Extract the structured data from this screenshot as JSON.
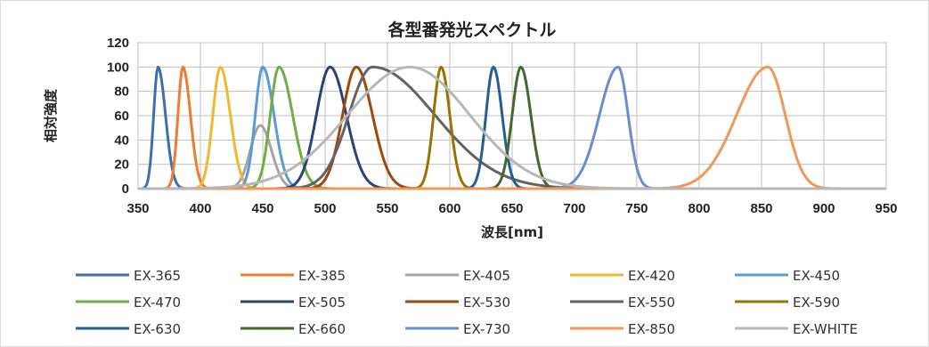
{
  "chart_data": {
    "type": "line",
    "title": "各型番発光スペクトル",
    "xlabel": "波長[nm]",
    "ylabel": "相対強度",
    "xlim": [
      350,
      950
    ],
    "ylim": [
      0,
      120
    ],
    "x_ticks": [
      "350",
      "400",
      "450",
      "500",
      "550",
      "600",
      "650",
      "700",
      "750",
      "800",
      "850",
      "900",
      "950"
    ],
    "y_ticks": [
      "0",
      "20",
      "40",
      "60",
      "80",
      "100",
      "120"
    ],
    "grid": true,
    "legend_position": "bottom",
    "series": [
      {
        "name": "EX-365",
        "color": "#3a6fb0",
        "peak": 366,
        "sigma_left": 3.5,
        "sigma_right": 6,
        "max": 100
      },
      {
        "name": "EX-385",
        "color": "#ed7d31",
        "peak": 386,
        "sigma_left": 4,
        "sigma_right": 6,
        "max": 100
      },
      {
        "name": "EX-405",
        "color": "#a5a5a5",
        "peak": 448,
        "sigma_left": 8,
        "sigma_right": 9,
        "max": 52
      },
      {
        "name": "EX-420",
        "color": "#f2b630",
        "peak": 416,
        "sigma_left": 6,
        "sigma_right": 8,
        "max": 100
      },
      {
        "name": "EX-450",
        "color": "#5b9bd5",
        "peak": 450,
        "sigma_left": 6,
        "sigma_right": 9,
        "max": 100
      },
      {
        "name": "EX-470",
        "color": "#70ad47",
        "peak": 463,
        "sigma_left": 7,
        "sigma_right": 11,
        "max": 100
      },
      {
        "name": "EX-505",
        "color": "#264478",
        "peak": 504,
        "sigma_left": 11,
        "sigma_right": 13,
        "max": 100
      },
      {
        "name": "EX-530",
        "color": "#9e480e",
        "peak": 525,
        "sigma_left": 11,
        "sigma_right": 13,
        "max": 100
      },
      {
        "name": "EX-550",
        "color": "#636363",
        "peak": 538,
        "sigma_left": 19,
        "sigma_right": 50,
        "max": 100
      },
      {
        "name": "EX-590",
        "color": "#997300",
        "peak": 593,
        "sigma_left": 6,
        "sigma_right": 7,
        "max": 100
      },
      {
        "name": "EX-630",
        "color": "#255e91",
        "peak": 635,
        "sigma_left": 6,
        "sigma_right": 7,
        "max": 100
      },
      {
        "name": "EX-660",
        "color": "#43682b",
        "peak": 657,
        "sigma_left": 7,
        "sigma_right": 8,
        "max": 100
      },
      {
        "name": "EX-730",
        "color": "#698ed0",
        "peak": 735,
        "sigma_left": 15,
        "sigma_right": 8,
        "max": 100
      },
      {
        "name": "EX-850",
        "color": "#f1975a",
        "peak": 855,
        "sigma_left": 25,
        "sigma_right": 14,
        "max": 100
      },
      {
        "name": "EX-WHITE",
        "color": "#b7b7b7",
        "peak": 568,
        "sigma_left": 50,
        "sigma_right": 48,
        "max": 100
      }
    ]
  }
}
